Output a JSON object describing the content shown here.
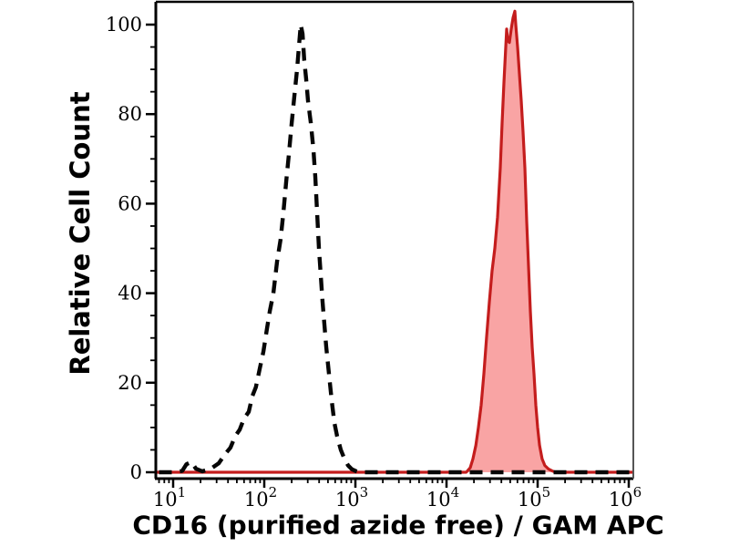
{
  "chart_data": {
    "type": "area",
    "variant": "flow-cytometry-overlay-histogram",
    "title": "",
    "xlabel": "CD16 (purified azide free) / GAM APC",
    "ylabel": "Relative Cell Count",
    "x_scale": "log10",
    "x_axis": {
      "base_label": "10",
      "decade_exponents": [
        1,
        2,
        3,
        4,
        5,
        6
      ],
      "xlim_log10": [
        0.81,
        6.05
      ],
      "minor_ticks": "2-9 per decade"
    },
    "y_axis": {
      "major_ticks": [
        0,
        20,
        40,
        60,
        80,
        100
      ],
      "minor_step": 5,
      "ylim": [
        -1.5,
        105
      ]
    },
    "grid": "off",
    "legend": "none",
    "background": "#ffffff",
    "axis_color": "#000000",
    "frame_right_color": "#555555",
    "series": [
      {
        "name": "red-filled-histogram",
        "line_style": "solid",
        "line_color": "#c41d1d",
        "fill_color": "#f9a4a4",
        "points": [
          [
            6.5,
            0
          ],
          [
            16500,
            0
          ],
          [
            18200,
            1
          ],
          [
            19500,
            3
          ],
          [
            21000,
            6
          ],
          [
            22400,
            10
          ],
          [
            24000,
            15
          ],
          [
            25700,
            22
          ],
          [
            27500,
            30
          ],
          [
            29500,
            38
          ],
          [
            31600,
            45
          ],
          [
            33900,
            50
          ],
          [
            36300,
            57
          ],
          [
            38900,
            68
          ],
          [
            40700,
            78
          ],
          [
            42700,
            87
          ],
          [
            44700,
            95
          ],
          [
            45700,
            99
          ],
          [
            46800,
            96.5
          ],
          [
            49000,
            96
          ],
          [
            51300,
            99
          ],
          [
            53700,
            101.5
          ],
          [
            56200,
            103
          ],
          [
            57500,
            100
          ],
          [
            60300,
            95
          ],
          [
            63100,
            89
          ],
          [
            66100,
            83
          ],
          [
            69200,
            76
          ],
          [
            72400,
            68
          ],
          [
            75900,
            56
          ],
          [
            79400,
            46
          ],
          [
            83200,
            36
          ],
          [
            87100,
            28
          ],
          [
            91200,
            22
          ],
          [
            95500,
            15
          ],
          [
            100000,
            10
          ],
          [
            105000,
            6
          ],
          [
            112000,
            3
          ],
          [
            120000,
            1.5
          ],
          [
            132000,
            0.7
          ],
          [
            148000,
            0.2
          ],
          [
            160000,
            0
          ],
          [
            1100000,
            0
          ]
        ]
      },
      {
        "name": "black-dashed-histogram",
        "line_style": "dashed",
        "line_color": "#060606",
        "fill_color": "none",
        "points": [
          [
            7,
            0
          ],
          [
            10,
            0
          ],
          [
            12.6,
            0.3
          ],
          [
            14,
            1.8
          ],
          [
            15.8,
            2.3
          ],
          [
            17.8,
            0.8
          ],
          [
            20.9,
            0.2
          ],
          [
            26,
            0.8
          ],
          [
            31.6,
            2
          ],
          [
            37,
            4
          ],
          [
            42.6,
            5.5
          ],
          [
            47.9,
            8
          ],
          [
            53.7,
            9.5
          ],
          [
            60,
            12
          ],
          [
            67.6,
            13.5
          ],
          [
            74,
            17
          ],
          [
            81,
            19
          ],
          [
            89,
            23
          ],
          [
            98,
            27
          ],
          [
            107,
            32
          ],
          [
            115,
            36
          ],
          [
            126,
            40
          ],
          [
            138,
            47
          ],
          [
            151,
            52
          ],
          [
            162,
            58
          ],
          [
            174,
            65
          ],
          [
            186,
            71
          ],
          [
            200,
            78
          ],
          [
            214,
            84
          ],
          [
            229,
            90
          ],
          [
            240,
            95
          ],
          [
            251,
            100
          ],
          [
            263,
            98
          ],
          [
            275,
            92
          ],
          [
            288,
            88
          ],
          [
            302,
            83
          ],
          [
            324,
            78
          ],
          [
            347,
            72
          ],
          [
            363,
            66
          ],
          [
            380,
            58
          ],
          [
            398,
            50
          ],
          [
            417,
            44
          ],
          [
            437,
            38
          ],
          [
            457,
            33
          ],
          [
            479,
            28
          ],
          [
            513,
            22
          ],
          [
            550,
            16
          ],
          [
            589,
            11
          ],
          [
            631,
            8
          ],
          [
            692,
            5
          ],
          [
            759,
            3
          ],
          [
            832,
            1.5
          ],
          [
            912,
            0.7
          ],
          [
            1023,
            0.2
          ],
          [
            1100,
            0
          ],
          [
            1100000,
            0
          ]
        ]
      }
    ]
  }
}
